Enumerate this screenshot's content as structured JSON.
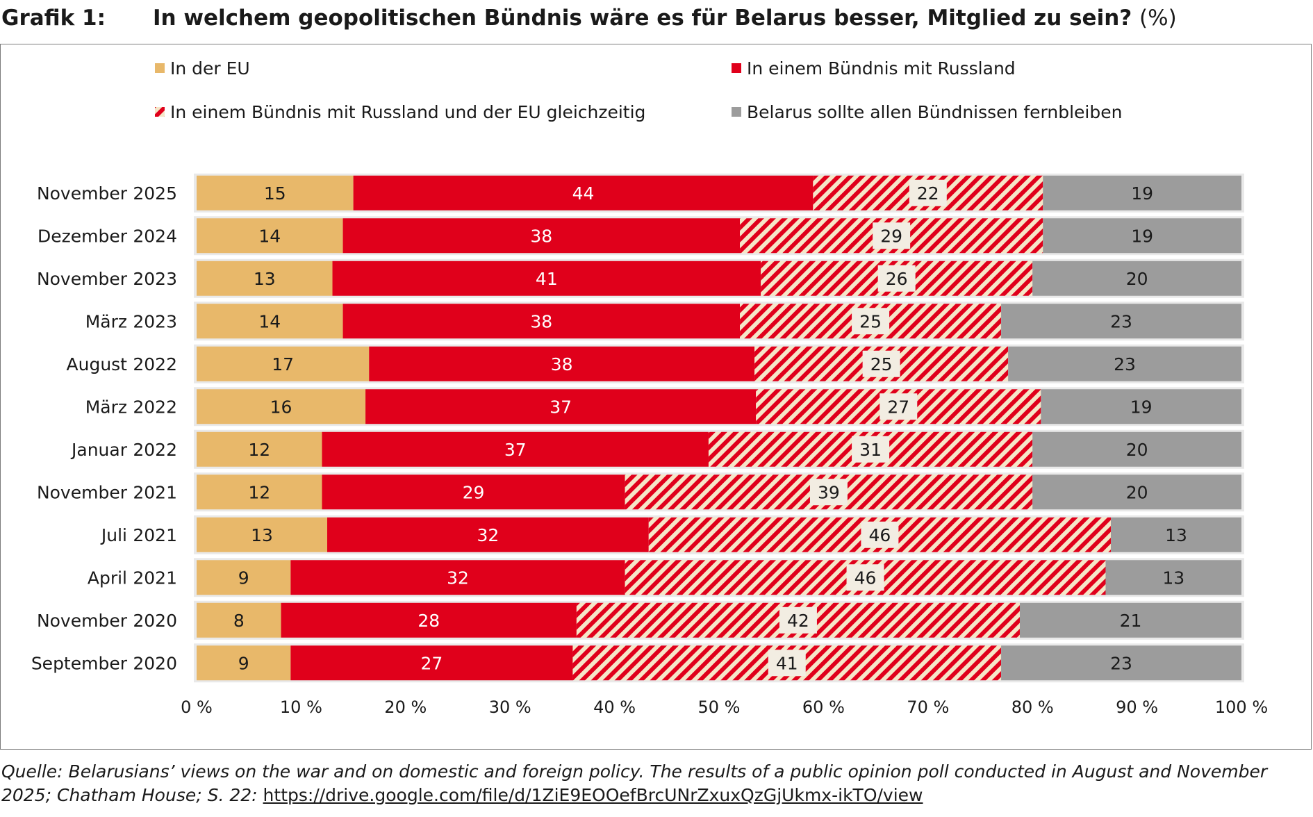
{
  "header": {
    "label": "Grafik 1:",
    "title": "In welchem geopolitischen Bündnis wäre es für Belarus besser, Mitglied zu sein?",
    "unit": "(%)"
  },
  "colors": {
    "eu": "#e8b86a",
    "russia": "#e0001b",
    "both_stripe_a": "#e0001b",
    "both_stripe_b": "#f5e6c8",
    "none": "#9c9c9c",
    "label_box": "#f2ede2",
    "row_band": "#e9e9e9"
  },
  "chart_data": {
    "type": "bar",
    "orientation": "horizontal",
    "stacked": true,
    "normalized": true,
    "title": "In welchem geopolitischen Bündnis wäre es für Belarus besser, Mitglied zu sein? (%)",
    "xlabel": "",
    "ylabel": "",
    "xlim": [
      0,
      100
    ],
    "x_ticks": [
      "0 %",
      "10 %",
      "20 %",
      "30 %",
      "40 %",
      "50 %",
      "60 %",
      "70 %",
      "80 %",
      "90 %",
      "100 %"
    ],
    "legend_position": "top",
    "categories": [
      {
        "month": "November",
        "year": "2025"
      },
      {
        "month": "Dezember",
        "year": "2024"
      },
      {
        "month": "November",
        "year": "2023"
      },
      {
        "month": "März",
        "year": "2023"
      },
      {
        "month": "August",
        "year": "2022"
      },
      {
        "month": "März",
        "year": "2022"
      },
      {
        "month": "Januar",
        "year": "2022"
      },
      {
        "month": "November",
        "year": "2021"
      },
      {
        "month": "Juli",
        "year": "2021"
      },
      {
        "month": "April",
        "year": "2021"
      },
      {
        "month": "November",
        "year": "2020"
      },
      {
        "month": "September",
        "year": "2020"
      }
    ],
    "series": [
      {
        "name": "In der EU",
        "key": "eu",
        "pattern": "solid",
        "values": [
          15,
          14,
          13,
          14,
          17,
          16,
          12,
          12,
          13,
          9,
          8,
          9
        ]
      },
      {
        "name": "In einem Bündnis mit Russland",
        "key": "russia",
        "pattern": "solid",
        "values": [
          44,
          38,
          41,
          38,
          38,
          37,
          37,
          29,
          32,
          32,
          28,
          27
        ]
      },
      {
        "name": "In einem Bündnis mit Russland und der EU gleichzeitig",
        "key": "both",
        "pattern": "hatched",
        "values": [
          22,
          29,
          26,
          25,
          25,
          27,
          31,
          39,
          46,
          46,
          42,
          41
        ]
      },
      {
        "name": "Belarus sollte allen Bündnissen fernbleiben",
        "key": "none",
        "pattern": "solid",
        "values": [
          19,
          19,
          20,
          23,
          23,
          19,
          20,
          20,
          13,
          13,
          21,
          23
        ]
      }
    ]
  },
  "source": {
    "text": "Quelle: Belarusians’ views on the war and on domestic and foreign policy. The results of a public opinion poll conducted in August and November 2025; Chatham House; S. 22:",
    "url": "https://drive.google.com/file/d/1ZiE9EOOefBrcUNrZxuxQzGjUkmx-ikTO/view"
  }
}
